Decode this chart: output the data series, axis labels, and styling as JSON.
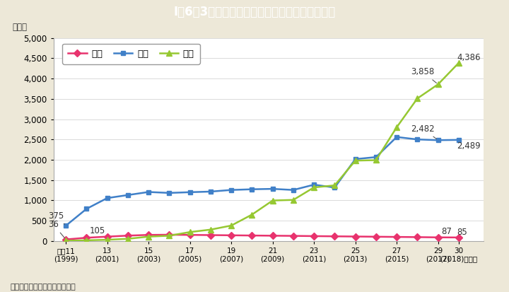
{
  "title": "I－6－3図　夫から妻への犯罪の検挙件数の推移",
  "title_bg_color": "#29b9cc",
  "title_text_color": "#ffffff",
  "bg_color": "#ede8d8",
  "plot_bg_color": "#ffffff",
  "ylabel": "（件）",
  "xlabel_note": "（備考）警察庁資料より作成。",
  "years": [
    11,
    12,
    13,
    14,
    15,
    16,
    17,
    18,
    19,
    20,
    21,
    22,
    23,
    24,
    25,
    26,
    27,
    28,
    29,
    30
  ],
  "xtick_years": [
    11,
    13,
    15,
    17,
    19,
    21,
    23,
    25,
    27,
    29,
    30
  ],
  "murder": [
    36,
    78,
    105,
    130,
    148,
    152,
    148,
    143,
    138,
    133,
    128,
    124,
    118,
    113,
    108,
    103,
    98,
    93,
    87,
    85
  ],
  "injury": [
    375,
    790,
    1055,
    1130,
    1205,
    1182,
    1200,
    1215,
    1255,
    1272,
    1282,
    1255,
    1385,
    1315,
    2015,
    2065,
    2560,
    2500,
    2482,
    2489
  ],
  "violence": [
    4,
    15,
    28,
    52,
    105,
    128,
    218,
    278,
    378,
    648,
    995,
    1010,
    1318,
    1368,
    1978,
    1990,
    2800,
    3510,
    3858,
    4386
  ],
  "murder_color": "#e8336e",
  "injury_color": "#4080c8",
  "violence_color": "#96c832",
  "ylim": [
    0,
    5000
  ],
  "yticks": [
    0,
    500,
    1000,
    1500,
    2000,
    2500,
    3000,
    3500,
    4000,
    4500,
    5000
  ],
  "legend_labels": [
    "殺人",
    "傷害",
    "暴行"
  ]
}
